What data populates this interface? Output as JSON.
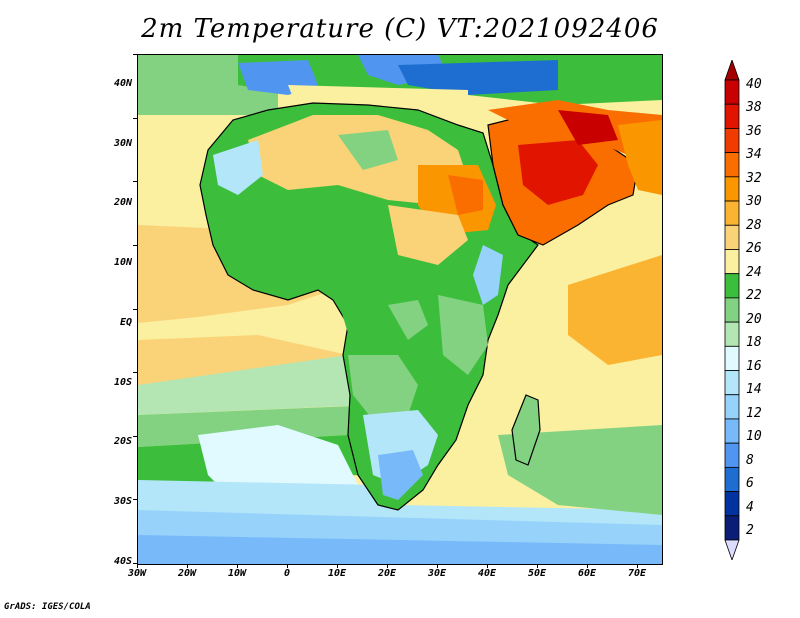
{
  "title": "2m Temperature (C) VT:2021092406",
  "credit": "GrADS: IGES/COLA",
  "map": {
    "region": "Africa and Middle East",
    "variable": "2m Temperature",
    "units": "C",
    "valid_time": "2021092406"
  },
  "axes": {
    "lat_labels": [
      "40N",
      "30N",
      "20N",
      "10N",
      "EQ",
      "10S",
      "20S",
      "30S",
      "40S"
    ],
    "lon_labels": [
      "30W",
      "20W",
      "10W",
      "0",
      "10E",
      "20E",
      "30E",
      "40E",
      "50E",
      "60E",
      "70E"
    ]
  },
  "colorbar": {
    "labels": [
      "40",
      "38",
      "36",
      "34",
      "32",
      "30",
      "28",
      "26",
      "24",
      "22",
      "20",
      "18",
      "16",
      "14",
      "12",
      "10",
      "8",
      "6",
      "4",
      "2"
    ],
    "colors": [
      "#a50000",
      "#c80000",
      "#e11400",
      "#f03c00",
      "#fa6e00",
      "#fa9600",
      "#fab432",
      "#fad278",
      "#faf0a0",
      "#3cbe3c",
      "#82d282",
      "#b4e6b4",
      "#e1faff",
      "#b4e6fa",
      "#96d2fa",
      "#78b9fa",
      "#5096f0",
      "#1e6ed2",
      "#0032a0",
      "#0a1e78",
      "#dcdcff"
    ]
  }
}
